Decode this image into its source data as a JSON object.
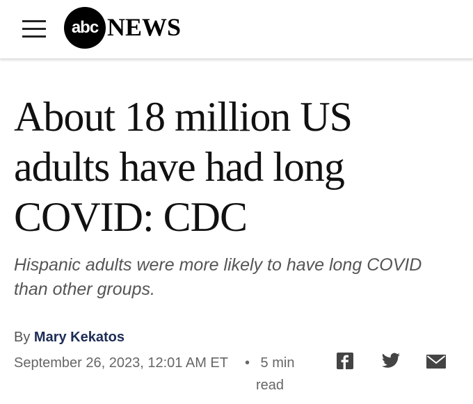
{
  "header": {
    "logo_mark": "abc",
    "logo_text": "NEWS"
  },
  "article": {
    "headline": "About 18 million US adults have had long COVID: CDC",
    "subheadline": "Hispanic adults were more likely to have long COVID than other groups.",
    "byline_prefix": "By",
    "author": "Mary Kekatos",
    "date": "September 26, 2023, 12:01 AM ET",
    "read_time": "5 min read"
  }
}
